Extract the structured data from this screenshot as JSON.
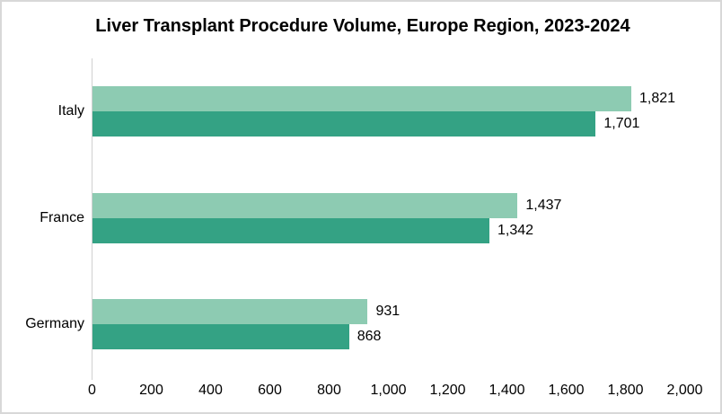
{
  "chart_data": {
    "type": "bar",
    "orientation": "horizontal",
    "title": "Liver Transplant Procedure Volume, Europe Region, 2023-2024",
    "categories": [
      "Italy",
      "France",
      "Germany"
    ],
    "series": [
      {
        "name": "series-1-light-green",
        "color": "#8DCBB2",
        "values": [
          1821,
          1437,
          931
        ],
        "value_labels": [
          "1,821",
          "1,437",
          "931"
        ]
      },
      {
        "name": "series-2-dark-green",
        "color": "#34A284",
        "values": [
          1701,
          1342,
          868
        ],
        "value_labels": [
          "1,701",
          "1,342",
          "868"
        ]
      }
    ],
    "xlabel": "",
    "ylabel": "",
    "xlim": [
      0,
      2000
    ],
    "x_ticks": [
      0,
      200,
      400,
      600,
      800,
      1000,
      1200,
      1400,
      1600,
      1800,
      2000
    ],
    "x_tick_labels": [
      "0",
      "200",
      "400",
      "600",
      "800",
      "1,000",
      "1,200",
      "1,400",
      "1,600",
      "1,800",
      "2,000"
    ],
    "grid": false,
    "legend_position": "none"
  },
  "colors": {
    "bar_light": "#8DCBB2",
    "bar_dark": "#34A284",
    "axis_line": "#D0D0D0",
    "text": "#000000",
    "frame_border": "#D8D8D8",
    "background": "#FFFFFF"
  }
}
